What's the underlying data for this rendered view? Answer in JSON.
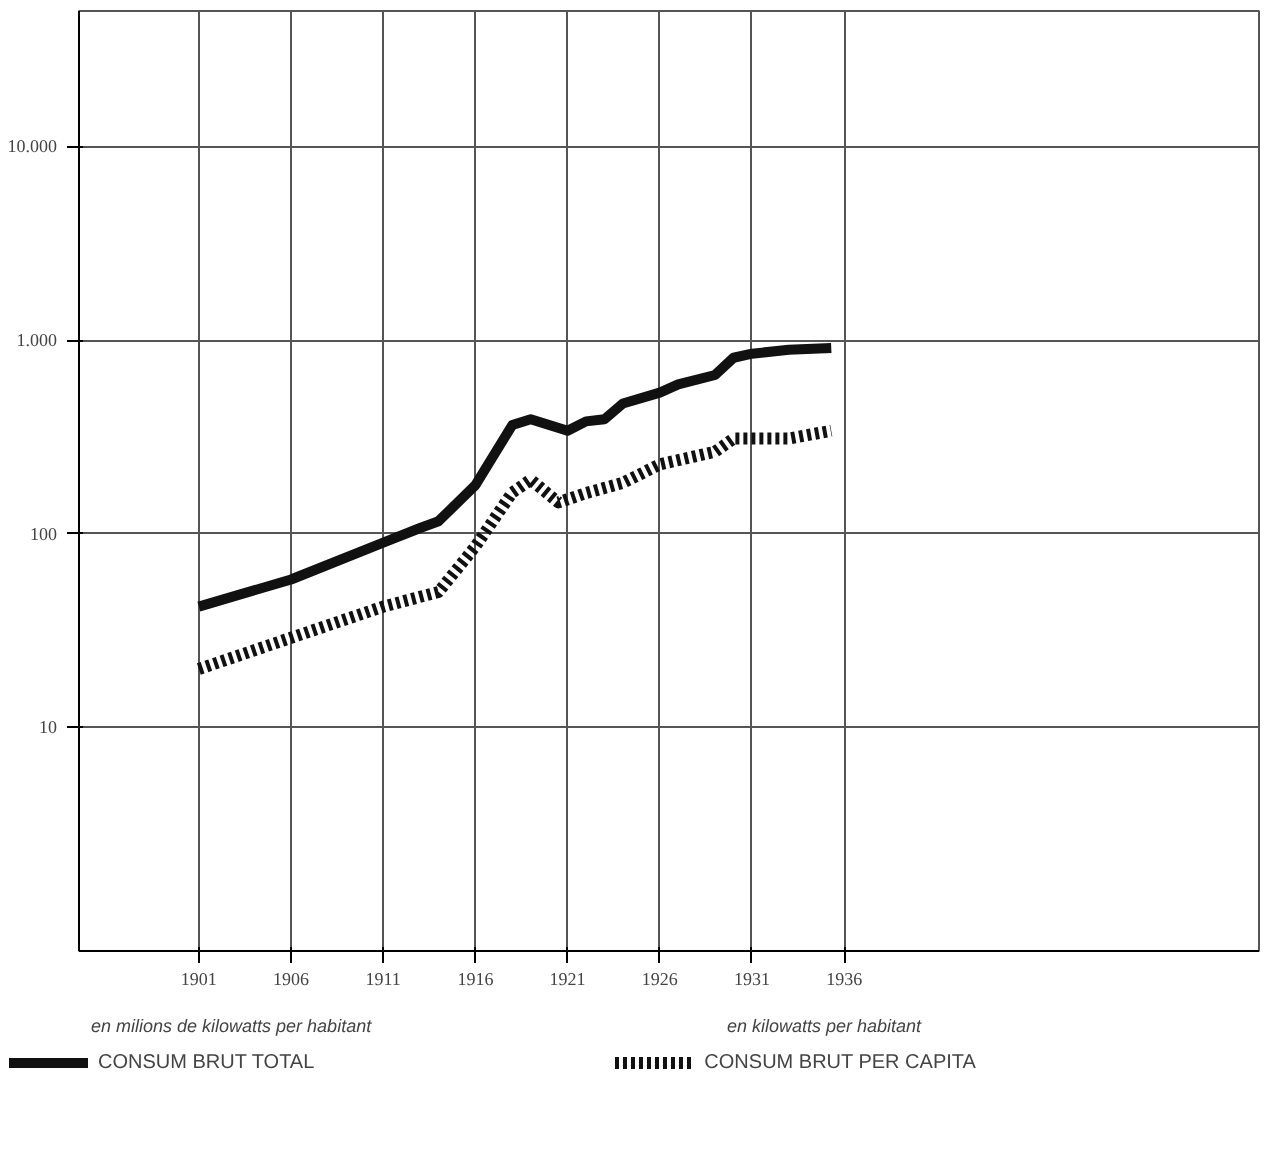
{
  "chart_data": {
    "type": "line",
    "log": "y",
    "xlim": [
      1894.5,
      1958.5
    ],
    "ylim": [
      0.7,
      50000
    ],
    "xticks": [
      1901,
      1906,
      1911,
      1916,
      1921,
      1926,
      1931,
      1936
    ],
    "yticks": [
      10,
      100,
      {
        "value": 1000,
        "label": "1.000"
      },
      {
        "value": 10000,
        "label": "10.000"
      }
    ],
    "grid": true,
    "legend": "bottom",
    "annotations": [
      "en milions de kilowatts per habitant",
      "en kilowatts per habitant"
    ],
    "series": [
      {
        "name": "CONSUM BRUT TOTAL",
        "color": "#111111",
        "line_style": "solid",
        "x": [
          1901,
          1906,
          1911,
          1913,
          1914,
          1916,
          1918,
          1919,
          1921,
          1922,
          1923,
          1924,
          1926,
          1927,
          1929,
          1930,
          1931,
          1933,
          1935.3
        ],
        "values": [
          42,
          58,
          90,
          107,
          116,
          178,
          364,
          390,
          340,
          380,
          390,
          470,
          535,
          590,
          660,
          810,
          850,
          890,
          910
        ]
      },
      {
        "name": "CONSUM BRUT PER CAPITA",
        "color": "#111111",
        "line_style": "dotted",
        "x": [
          1901,
          1906,
          1911,
          1914,
          1916,
          1918,
          1919,
          1920.5,
          1922,
          1924,
          1926,
          1929,
          1930,
          1933,
          1935.3
        ],
        "values": [
          20,
          29,
          42,
          50,
          86,
          163,
          190,
          145,
          162,
          183,
          228,
          265,
          310,
          310,
          340
        ]
      }
    ]
  }
}
